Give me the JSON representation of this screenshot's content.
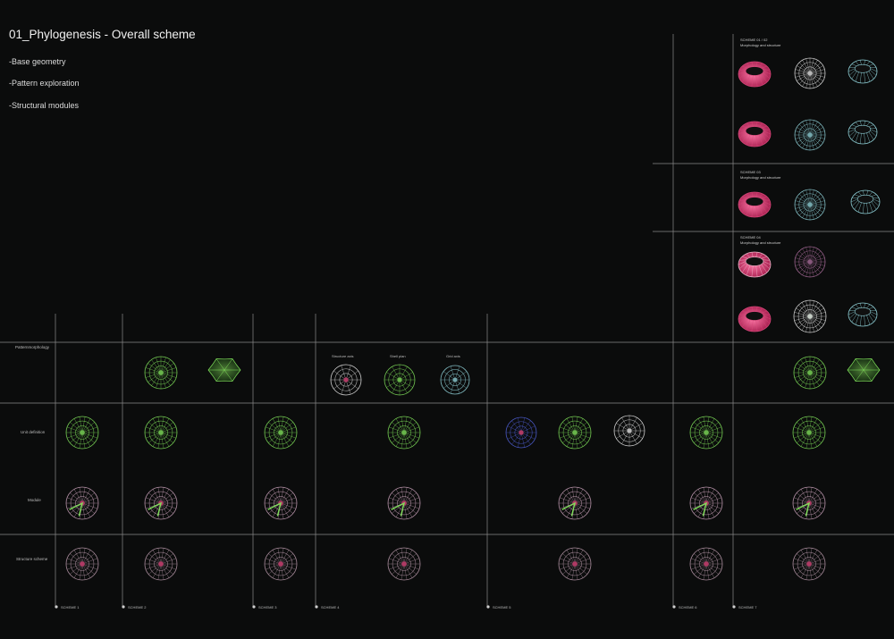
{
  "header": {
    "title": "01_Phylogenesis - Overall scheme",
    "bullets": [
      "-Base geometry",
      "-Pattern exploration",
      "-Structural modules"
    ]
  },
  "row_labels": [
    "Patternmorphology",
    "Unit definition",
    "Module",
    "Structure scheme"
  ],
  "column_labels": [
    "SCHEME 1",
    "SCHEME 2",
    "SCHEME 3",
    "SCHEME 4",
    "SCHEME 5",
    "SCHEME 6",
    "SCHEME 7"
  ],
  "sublabels": [
    "Structure axis",
    "Shell plan",
    "Grid axis"
  ],
  "panel_titles": [
    {
      "title": "SCHEME 01 / 02",
      "subtitle": "Morphology and structure"
    },
    {
      "title": "SCHEME 03",
      "subtitle": "Morphology and structure"
    },
    {
      "title": "SCHEME 04",
      "subtitle": "Morphology and structure"
    }
  ],
  "colors": {
    "background": "#0b0c0c",
    "grid_line": "#8a8a8a",
    "green_wire": "#7fe05a",
    "magenta_wire": "#d8467a",
    "white_wire": "#e4e4e4",
    "cyan_wire": "#8ecfd6",
    "blue_wire": "#5060d8"
  }
}
